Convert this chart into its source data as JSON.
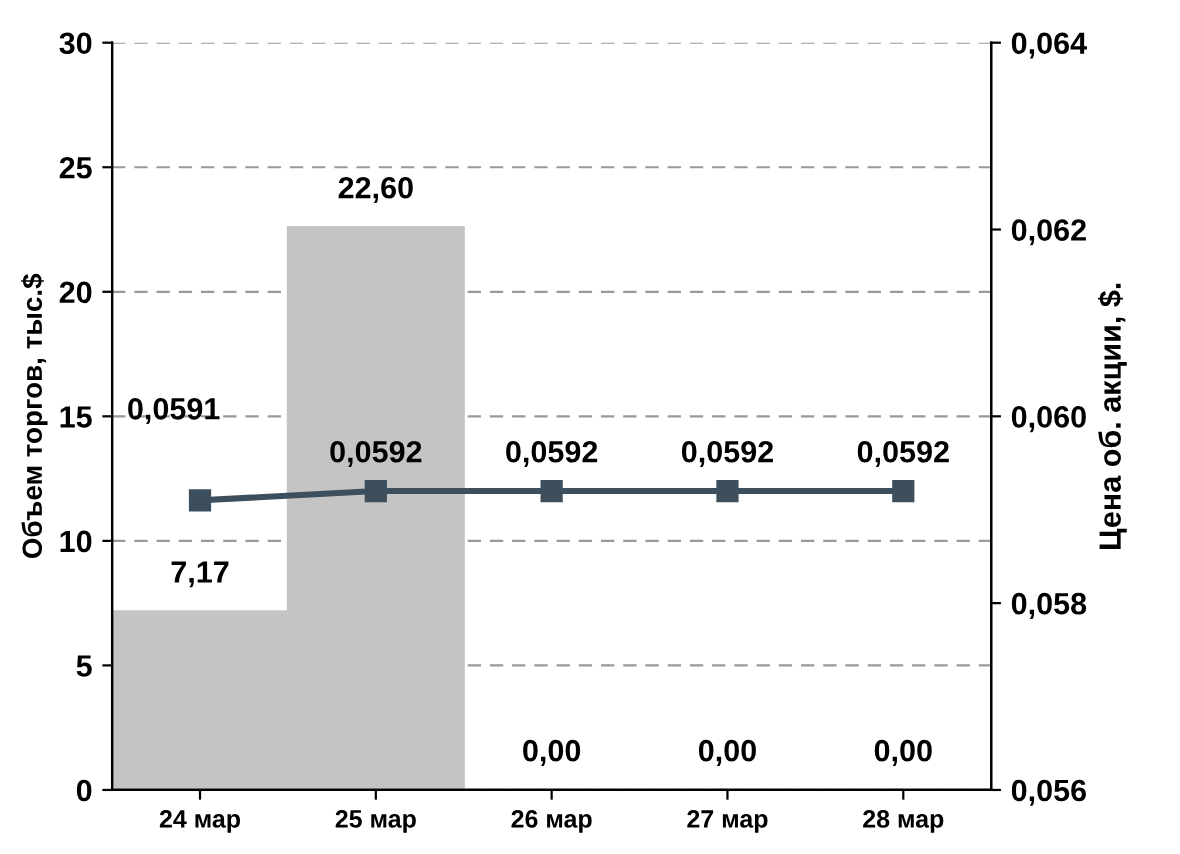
{
  "chart_data": {
    "type": "bar",
    "ylabel": "Объем торгов, тыс.$",
    "y2label": "Цена об. акции, $.",
    "categories": [
      "24 мар",
      "25 мар",
      "26 мар",
      "27 мар",
      "28 мар"
    ],
    "series": [
      {
        "color": "#c4c4c4",
        "values": [
          7.17,
          22.6,
          0,
          0,
          0
        ],
        "value_labels": [
          "7,17",
          "22,60",
          "0,00",
          "0,00",
          "0,00"
        ]
      },
      {
        "type": "line",
        "axis": "y2",
        "color": "#3d4f5c",
        "marker": "square",
        "line_style": "solid",
        "values": [
          0.0591,
          0.0592,
          0.0592,
          0.0592,
          0.0592
        ],
        "value_labels": [
          "0,0591",
          "0,0592",
          "0,0592",
          "0,0592",
          "0,0592"
        ]
      }
    ],
    "ylim": [
      0,
      30
    ],
    "yticks": [
      0,
      5,
      10,
      15,
      20,
      25,
      30
    ],
    "y2lim": [
      0.056,
      0.064
    ],
    "y2ticks": [
      {
        "value": 0.056,
        "label": "0,056"
      },
      {
        "value": 0.058,
        "label": "0,058"
      },
      {
        "value": 0.06,
        "label": "0,060"
      },
      {
        "value": 0.062,
        "label": "0,062"
      },
      {
        "value": 0.064,
        "label": "0,064"
      }
    ],
    "grid": "y"
  }
}
